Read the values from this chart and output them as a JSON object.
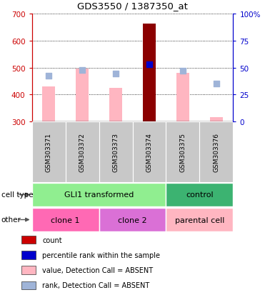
{
  "title": "GDS3550 / 1387350_at",
  "samples": [
    "GSM303371",
    "GSM303372",
    "GSM303373",
    "GSM303374",
    "GSM303375",
    "GSM303376"
  ],
  "value_bars": [
    430,
    495,
    425,
    662,
    480,
    315
  ],
  "value_absent": [
    true,
    true,
    true,
    false,
    true,
    true
  ],
  "rank_dots": [
    470,
    492,
    477,
    512,
    487,
    440
  ],
  "rank_absent": [
    true,
    true,
    true,
    false,
    true,
    true
  ],
  "ylim_left": [
    300,
    700
  ],
  "ylim_right": [
    0,
    100
  ],
  "yticks_left": [
    300,
    400,
    500,
    600,
    700
  ],
  "yticks_right": [
    0,
    25,
    50,
    75,
    100
  ],
  "cell_type_groups": [
    {
      "label": "GLI1 transformed",
      "span": [
        0,
        3
      ],
      "color": "#90EE90"
    },
    {
      "label": "control",
      "span": [
        4,
        5
      ],
      "color": "#3CB371"
    }
  ],
  "other_groups": [
    {
      "label": "clone 1",
      "span": [
        0,
        1
      ],
      "color": "#FF69B4"
    },
    {
      "label": "clone 2",
      "span": [
        2,
        3
      ],
      "color": "#DA70D6"
    },
    {
      "label": "parental cell",
      "span": [
        4,
        5
      ],
      "color": "#FFB6C1"
    }
  ],
  "bar_color_absent": "#FFB6C1",
  "bar_color_present": "#8B0000",
  "dot_color_absent": "#9FB4D8",
  "dot_color_present": "#0000CC",
  "legend_items": [
    {
      "color": "#CC0000",
      "label": "count"
    },
    {
      "color": "#0000CC",
      "label": "percentile rank within the sample"
    },
    {
      "color": "#FFB6C1",
      "label": "value, Detection Call = ABSENT"
    },
    {
      "color": "#9FB4D8",
      "label": "rank, Detection Call = ABSENT"
    }
  ],
  "axis_left_color": "#CC0000",
  "axis_right_color": "#0000CC",
  "bg_color": "#C8C8C8",
  "cell_type_label": "cell type",
  "other_label": "other",
  "figsize": [
    3.71,
    4.14
  ],
  "dpi": 100
}
